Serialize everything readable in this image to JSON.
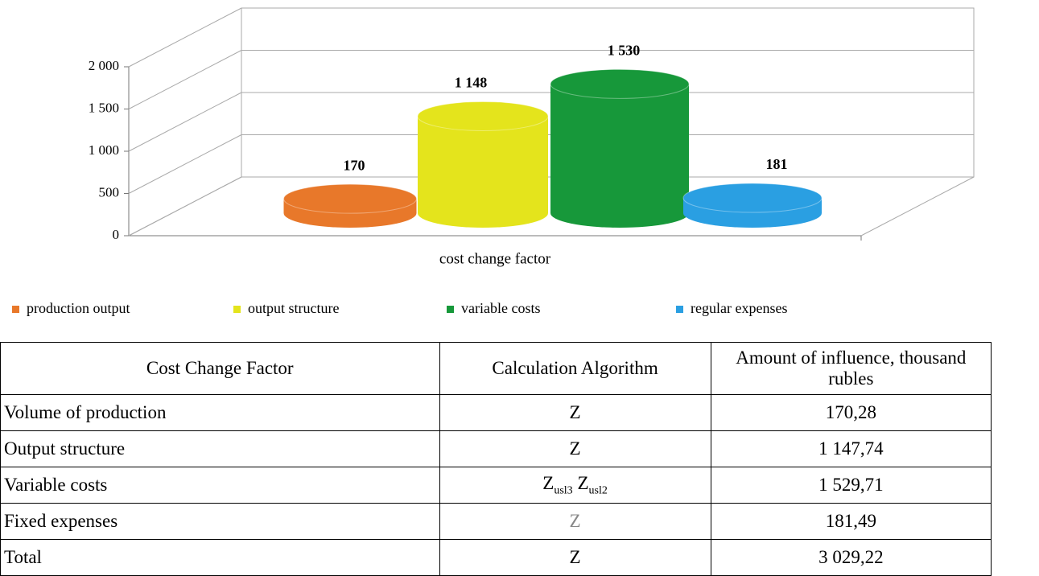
{
  "chart_data": {
    "type": "bar",
    "x_label": "cost change factor",
    "ylim": [
      0,
      2000
    ],
    "yticks": [
      0,
      500,
      {
        "value": 1000,
        "label": "1 000"
      },
      {
        "value": 1500,
        "label": "1 500"
      },
      {
        "value": 2000,
        "label": "2 000"
      }
    ],
    "grid": true,
    "legend": "bottom",
    "series": [
      {
        "name": "production output",
        "color": "#e8782a",
        "values": [
          170
        ],
        "value_labels": [
          "170"
        ]
      },
      {
        "name": "output structure",
        "color": "#e4e41c",
        "values": [
          1148
        ],
        "value_labels": [
          "1 148"
        ]
      },
      {
        "name": "variable costs",
        "color": "#17983a",
        "values": [
          1530
        ],
        "value_labels": [
          "1 530"
        ]
      },
      {
        "name": "regular expenses",
        "color": "#2a9fe2",
        "values": [
          181
        ],
        "value_labels": [
          "181"
        ]
      }
    ]
  },
  "table": {
    "header": [
      "Cost Change Factor",
      "Calculation Algorithm",
      "Amount of influence, thousand rubles"
    ],
    "rows": [
      [
        "Volume of production",
        "Z",
        "170,28"
      ],
      [
        "Output structure",
        "Z",
        "1 147,74"
      ],
      [
        "Variable costs",
        [
          {
            "base": "Z",
            "sub": "usl3"
          },
          {
            "base": "Z",
            "sub": "usl2"
          }
        ],
        "1 529,71"
      ],
      [
        "Fixed expenses",
        "Z",
        "181,49"
      ],
      [
        "Total",
        "Z",
        "3 029,22"
      ]
    ]
  }
}
